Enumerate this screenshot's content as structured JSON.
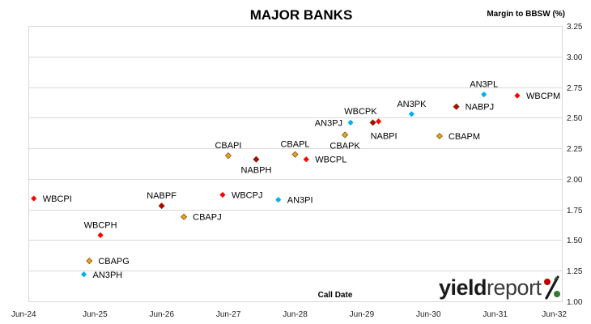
{
  "chart_data": {
    "type": "scatter",
    "title": "MAJOR BANKS",
    "ylabel": "Margin to BBSW (%)",
    "xlabel": "Call Date",
    "x_ticks": [
      "Jun-24",
      "Jun-25",
      "Jun-26",
      "Jun-27",
      "Jun-28",
      "Jun-29",
      "Jun-30",
      "Jun-31",
      "Jun-32"
    ],
    "ylim": [
      1.0,
      3.25
    ],
    "y_ticks": [
      "1.00",
      "1.25",
      "1.50",
      "1.75",
      "2.00",
      "2.25",
      "2.50",
      "2.75",
      "3.00",
      "3.25"
    ],
    "grid": "horizontal",
    "colors": {
      "WBC": "#ff0000",
      "CBA": "#e8a317",
      "NAB": "#c00000",
      "ANZ": "#00b0f0"
    },
    "points": [
      {
        "label": "WBCPI",
        "bank": "WBC",
        "date": "2024-07",
        "y": 1.84,
        "label_side": "right"
      },
      {
        "label": "WBCPH",
        "bank": "WBC",
        "date": "2025-07",
        "y": 1.54,
        "label_side": "above"
      },
      {
        "label": "WBCPJ",
        "bank": "WBC",
        "date": "2027-05",
        "y": 1.87,
        "label_side": "right"
      },
      {
        "label": "WBCPL",
        "bank": "WBC",
        "date": "2028-08",
        "y": 2.16,
        "label_side": "right"
      },
      {
        "label": "WBCPK",
        "bank": "WBC",
        "date": "2029-09",
        "y": 2.47,
        "label_side": "above-left"
      },
      {
        "label": "WBCPM",
        "bank": "WBC",
        "date": "2031-10",
        "y": 2.68,
        "label_side": "right"
      },
      {
        "label": "CBAPG",
        "bank": "CBA",
        "date": "2025-05",
        "y": 1.33,
        "label_side": "right"
      },
      {
        "label": "CBAPJ",
        "bank": "CBA",
        "date": "2026-10",
        "y": 1.69,
        "label_side": "right"
      },
      {
        "label": "CBAPI",
        "bank": "CBA",
        "date": "2027-06",
        "y": 2.19,
        "label_side": "above"
      },
      {
        "label": "CBAPL",
        "bank": "CBA",
        "date": "2028-06",
        "y": 2.2,
        "label_side": "above"
      },
      {
        "label": "CBAPK",
        "bank": "CBA",
        "date": "2029-03",
        "y": 2.36,
        "label_side": "below"
      },
      {
        "label": "CBAPM",
        "bank": "CBA",
        "date": "2030-08",
        "y": 2.35,
        "label_side": "right"
      },
      {
        "label": "NABPF",
        "bank": "NAB",
        "date": "2026-06",
        "y": 1.78,
        "label_side": "above"
      },
      {
        "label": "NABPH",
        "bank": "NAB",
        "date": "2027-11",
        "y": 2.16,
        "label_side": "below"
      },
      {
        "label": "NABPI",
        "bank": "NAB",
        "date": "2029-08",
        "y": 2.46,
        "label_side": "below-right"
      },
      {
        "label": "NABPJ",
        "bank": "NAB",
        "date": "2030-11",
        "y": 2.59,
        "label_side": "right"
      },
      {
        "label": "AN3PH",
        "bank": "ANZ",
        "date": "2025-04",
        "y": 1.22,
        "label_side": "right"
      },
      {
        "label": "AN3PI",
        "bank": "ANZ",
        "date": "2028-03",
        "y": 1.83,
        "label_side": "right"
      },
      {
        "label": "AN3PJ",
        "bank": "ANZ",
        "date": "2029-04",
        "y": 2.46,
        "label_side": "left"
      },
      {
        "label": "AN3PK",
        "bank": "ANZ",
        "date": "2030-03",
        "y": 2.53,
        "label_side": "above"
      },
      {
        "label": "AN3PL",
        "bank": "ANZ",
        "date": "2031-04",
        "y": 2.69,
        "label_side": "above"
      }
    ]
  },
  "brand": {
    "name_bold": "yield",
    "name_light": "report",
    "symbol": "%"
  }
}
